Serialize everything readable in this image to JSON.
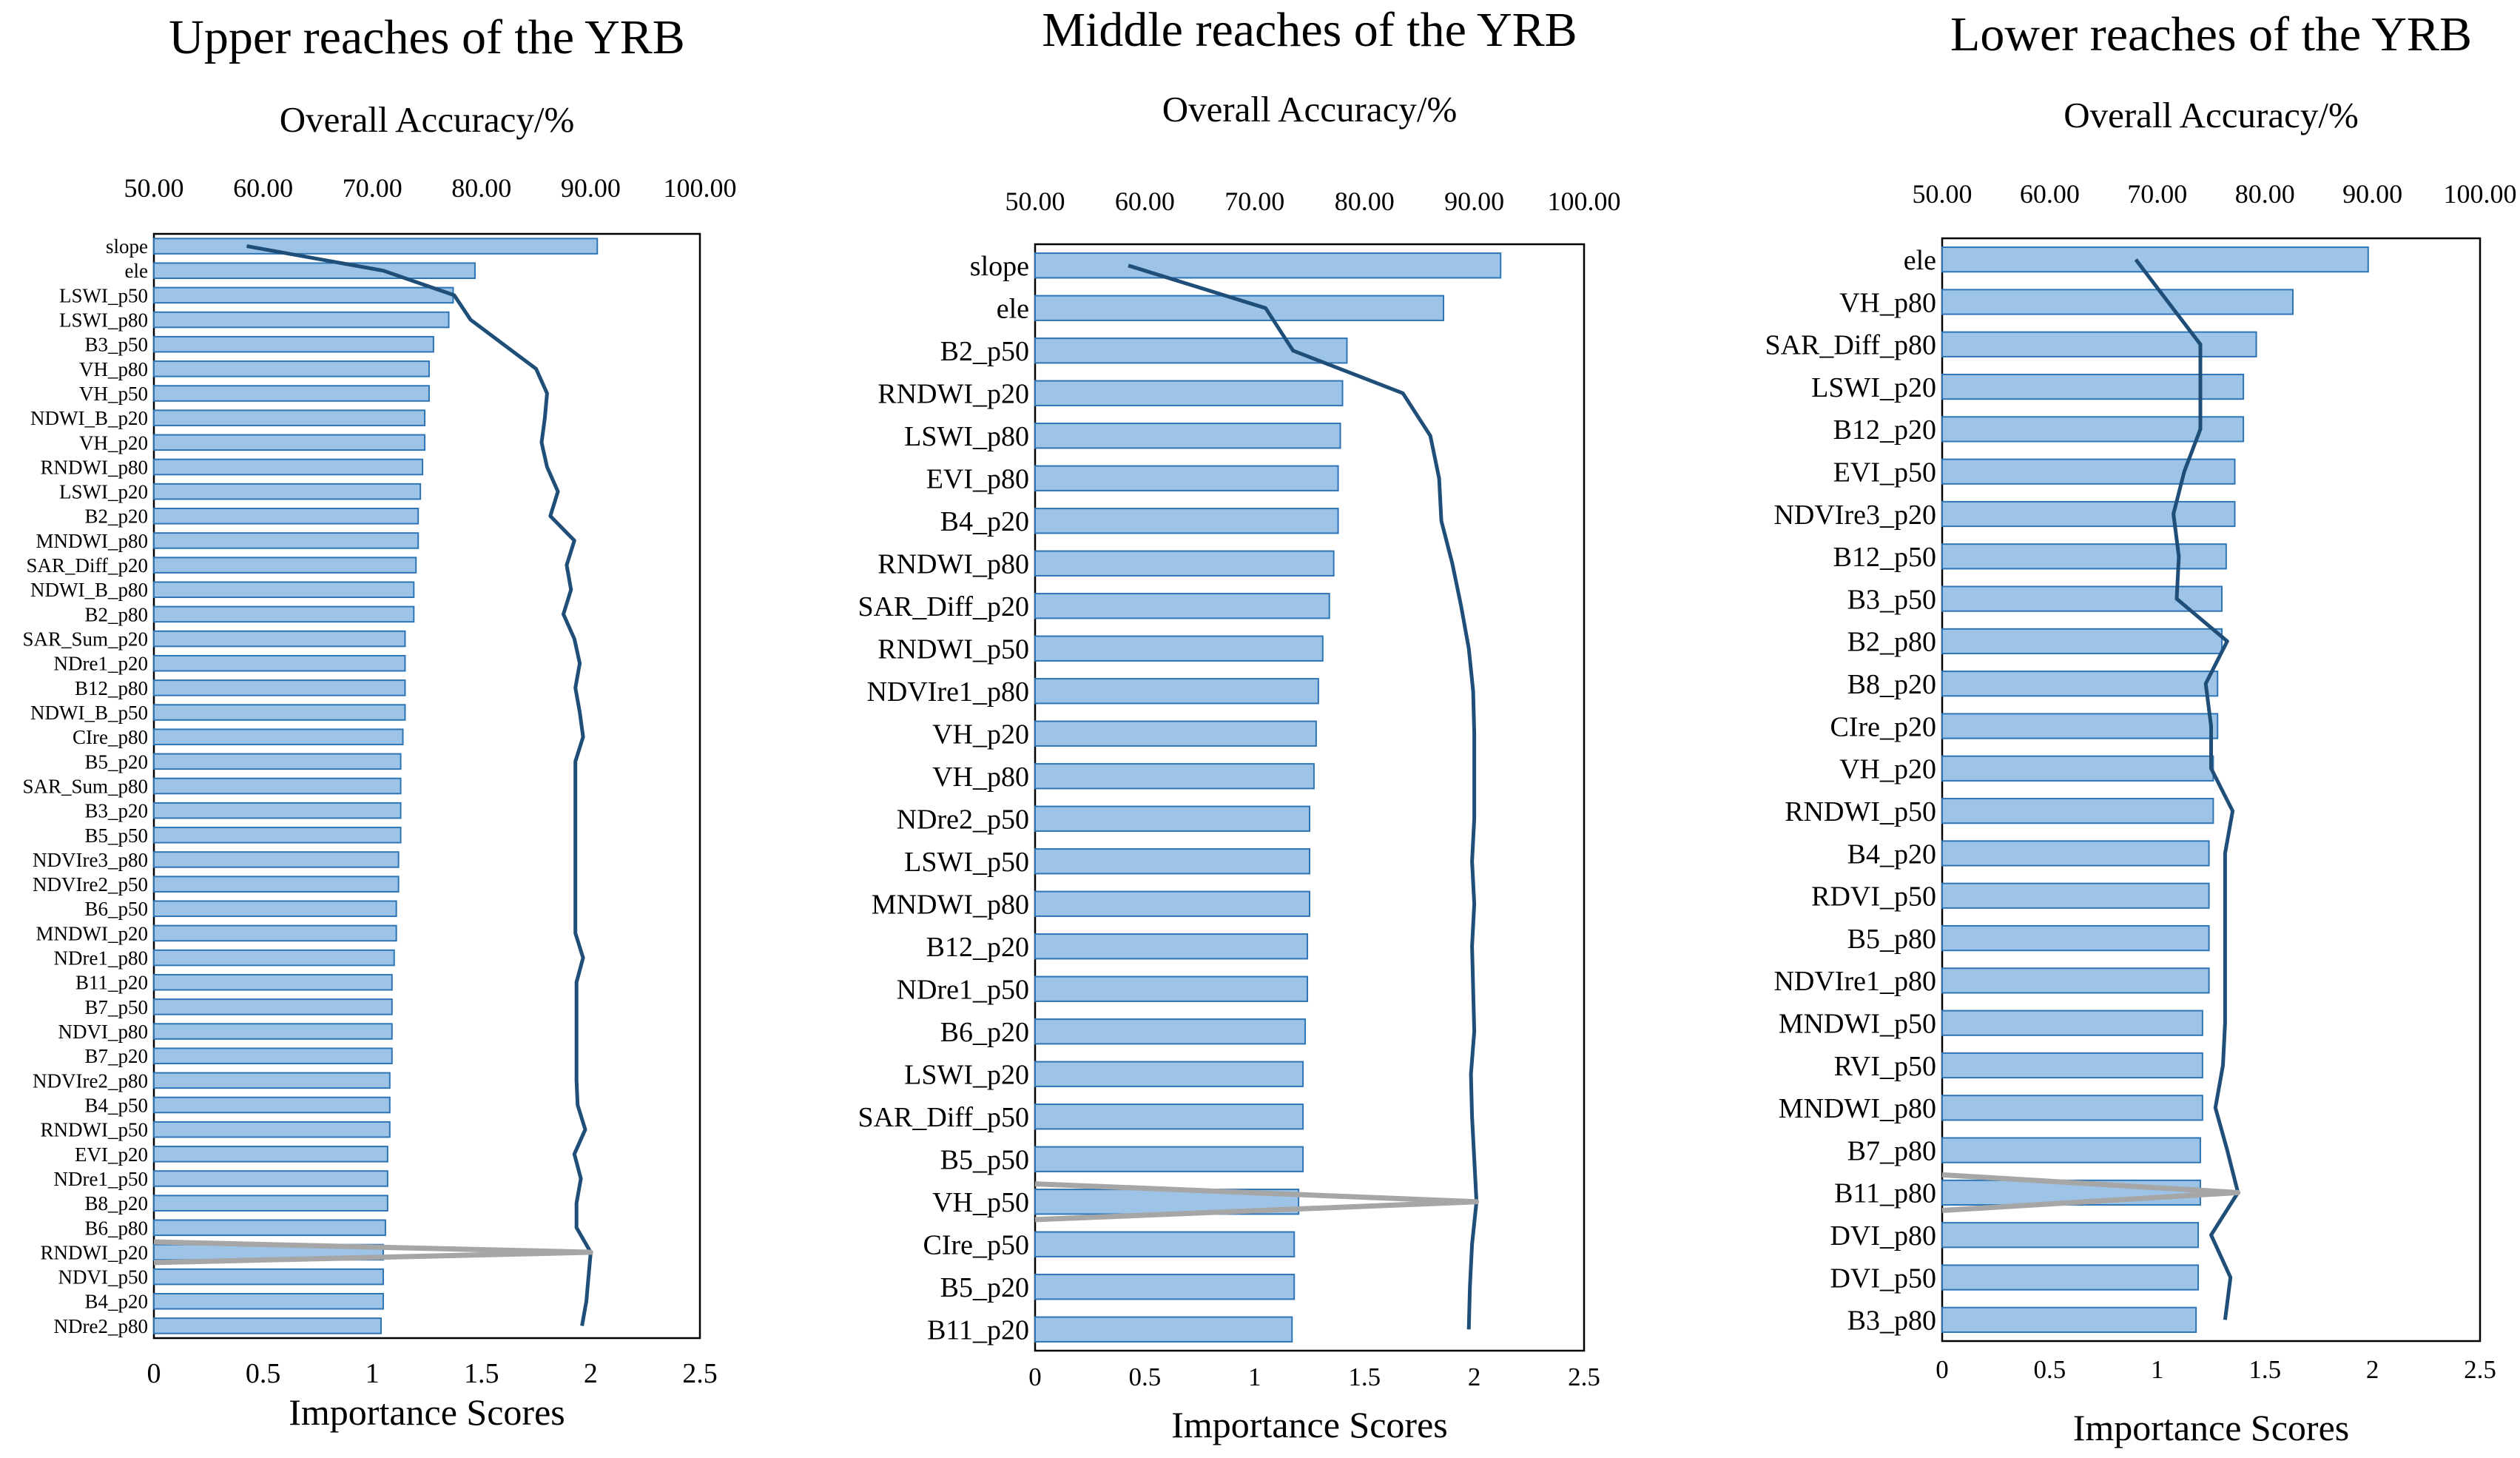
{
  "chart_data": [
    {
      "type": "bar",
      "title": "Upper reaches of the YRB",
      "top_axis_label": "Overall Accuracy/%",
      "top_ticks": [
        "50.00",
        "60.00",
        "70.00",
        "80.00",
        "90.00",
        "100.00"
      ],
      "top_range": [
        50,
        100
      ],
      "xlabel": "Importance Scores",
      "xlim": [
        0,
        2.5
      ],
      "xticks": [
        "0",
        "0.5",
        "1",
        "1.5",
        "2",
        "2.5"
      ],
      "categories": [
        "slope",
        "ele",
        "LSWI_p50",
        "LSWI_p80",
        "B3_p50",
        "VH_p80",
        "VH_p50",
        "NDWI_B_p20",
        "VH_p20",
        "RNDWI_p80",
        "LSWI_p20",
        "B2_p20",
        "MNDWI_p80",
        "SAR_Diff_p20",
        "NDWI_B_p80",
        "B2_p80",
        "SAR_Sum_p20",
        "NDre1_p20",
        "B12_p80",
        "NDWI_B_p50",
        "CIre_p80",
        "B5_p20",
        "SAR_Sum_p80",
        "B3_p20",
        "B5_p50",
        "NDVIre3_p80",
        "NDVIre2_p50",
        "B6_p50",
        "MNDWI_p20",
        "NDre1_p80",
        "B11_p20",
        "B7_p50",
        "NDVI_p80",
        "B7_p20",
        "NDVIre2_p80",
        "B4_p50",
        "RNDWI_p50",
        "EVI_p20",
        "NDre1_p50",
        "B8_p20",
        "B6_p80",
        "RNDWI_p20",
        "NDVI_p50",
        "B4_p20",
        "NDre2_p80"
      ],
      "values": [
        2.03,
        1.47,
        1.37,
        1.35,
        1.28,
        1.26,
        1.26,
        1.24,
        1.24,
        1.23,
        1.22,
        1.21,
        1.21,
        1.2,
        1.19,
        1.19,
        1.15,
        1.15,
        1.15,
        1.15,
        1.14,
        1.13,
        1.13,
        1.13,
        1.13,
        1.12,
        1.12,
        1.11,
        1.11,
        1.1,
        1.09,
        1.09,
        1.09,
        1.09,
        1.08,
        1.08,
        1.08,
        1.07,
        1.07,
        1.07,
        1.06,
        1.05,
        1.05,
        1.05,
        1.04
      ],
      "accuracy": [
        58.5,
        71,
        77.5,
        79,
        82,
        85,
        86,
        85.8,
        85.5,
        86,
        87,
        86.3,
        88.5,
        87.8,
        88.2,
        87.5,
        88.5,
        89,
        88.6,
        89,
        89.3,
        88.6,
        88.6,
        88.6,
        88.6,
        88.6,
        88.6,
        88.6,
        88.6,
        89.3,
        88.7,
        88.7,
        88.7,
        88.7,
        88.7,
        88.8,
        89.5,
        88.5,
        89.1,
        88.7,
        88.7,
        90,
        89.8,
        89.6,
        89.2
      ],
      "highlight": "RNDWI_p20",
      "highlight_value": 2.0
    },
    {
      "type": "bar",
      "title": "Middle reaches of the YRB",
      "top_axis_label": "Overall Accuracy/%",
      "top_ticks": [
        "50.00",
        "60.00",
        "70.00",
        "80.00",
        "90.00",
        "100.00"
      ],
      "top_range": [
        50,
        100
      ],
      "xlabel": "Importance Scores",
      "xlim": [
        0,
        2.5
      ],
      "xticks": [
        "0",
        "0.5",
        "1",
        "1.5",
        "2",
        "2.5"
      ],
      "categories": [
        "slope",
        "ele",
        "B2_p50",
        "RNDWI_p20",
        "LSWI_p80",
        "EVI_p80",
        "B4_p20",
        "RNDWI_p80",
        "SAR_Diff_p20",
        "RNDWI_p50",
        "NDVIre1_p80",
        "VH_p20",
        "VH_p80",
        "NDre2_p50",
        "LSWI_p50",
        "MNDWI_p80",
        "B12_p20",
        "NDre1_p50",
        "B6_p20",
        "LSWI_p20",
        "SAR_Diff_p50",
        "B5_p50",
        "VH_p50",
        "CIre_p50",
        "B5_p20",
        "B11_p20"
      ],
      "values": [
        2.12,
        1.86,
        1.42,
        1.4,
        1.39,
        1.38,
        1.38,
        1.36,
        1.34,
        1.31,
        1.29,
        1.28,
        1.27,
        1.25,
        1.25,
        1.25,
        1.24,
        1.24,
        1.23,
        1.22,
        1.22,
        1.22,
        1.2,
        1.18,
        1.18,
        1.17
      ],
      "accuracy": [
        58.5,
        71,
        73.5,
        83.5,
        86,
        86.8,
        87,
        88,
        88.8,
        89.5,
        89.9,
        90,
        90,
        90,
        89.8,
        90,
        89.8,
        89.9,
        90,
        89.7,
        89.8,
        90,
        90.2,
        89.8,
        89.6,
        89.5
      ],
      "highlight": "VH_p50",
      "highlight_value": 1.99
    },
    {
      "type": "bar",
      "title": "Lower reaches of the YRB",
      "top_axis_label": "Overall Accuracy/%",
      "top_ticks": [
        "50.00",
        "60.00",
        "70.00",
        "80.00",
        "90.00",
        "100.00"
      ],
      "top_range": [
        50,
        100
      ],
      "xlabel": "Importance Scores",
      "xlim": [
        0,
        2.5
      ],
      "xticks": [
        "0",
        "0.5",
        "1",
        "1.5",
        "2",
        "2.5"
      ],
      "categories": [
        "ele",
        "VH_p80",
        "SAR_Diff_p80",
        "LSWI_p20",
        "B12_p20",
        "EVI_p50",
        "NDVIre3_p20",
        "B12_p50",
        "B3_p50",
        "B2_p80",
        "B8_p20",
        "CIre_p20",
        "VH_p20",
        "RNDWI_p50",
        "B4_p20",
        "RDVI_p50",
        "B5_p80",
        "NDVIre1_p80",
        "MNDWI_p50",
        "RVI_p50",
        "MNDWI_p80",
        "B7_p80",
        "B11_p80",
        "DVI_p80",
        "DVI_p50",
        "B3_p80"
      ],
      "values": [
        1.98,
        1.63,
        1.46,
        1.4,
        1.4,
        1.36,
        1.36,
        1.32,
        1.3,
        1.3,
        1.28,
        1.28,
        1.26,
        1.26,
        1.24,
        1.24,
        1.24,
        1.24,
        1.21,
        1.21,
        1.21,
        1.2,
        1.2,
        1.19,
        1.19,
        1.18
      ],
      "accuracy": [
        68,
        71,
        74,
        74,
        74,
        72.5,
        71.5,
        72,
        71.8,
        76.5,
        74.5,
        75,
        75,
        77,
        76.3,
        76.3,
        76.3,
        76.3,
        76.3,
        76.1,
        75.4,
        76.5,
        77.5,
        75,
        76.8,
        76.3
      ],
      "highlight": "B11_p80",
      "highlight_value": 1.37
    }
  ]
}
